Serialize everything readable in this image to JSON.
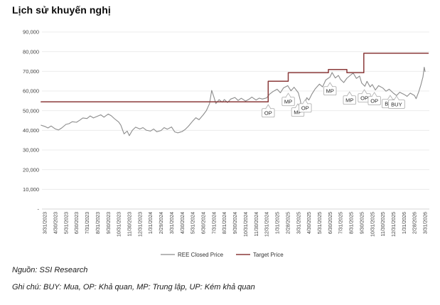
{
  "page": {
    "title": "Lịch sử khuyến nghị",
    "source_note": "Nguồn: SSI Research",
    "glossary_note": "Ghi chú: BUY: Mua, OP: Khả quan, MP: Trung lập, UP: Kém khả quan"
  },
  "chart_data": {
    "type": "line",
    "title": "Lịch sử khuyến nghị",
    "ylim": [
      0,
      90000
    ],
    "grid": true,
    "legend_position": "bottom",
    "colors": {
      "price_line": "#8c8c8c",
      "target_line": "#8b3a3a",
      "gridline": "#ececec",
      "axis": "#d4d4d4",
      "tick_text": "#444444",
      "annotation_border": "#b3b3b3",
      "annotation_text": "#222222"
    },
    "y_ticks": [
      {
        "value": 90000,
        "label": "90,000"
      },
      {
        "value": 80000,
        "label": "80,000"
      },
      {
        "value": 70000,
        "label": "70,000"
      },
      {
        "value": 60000,
        "label": "60,000"
      },
      {
        "value": 50000,
        "label": "50,000"
      },
      {
        "value": 40000,
        "label": "40,000"
      },
      {
        "value": 30000,
        "label": "30,000"
      },
      {
        "value": 20000,
        "label": "20,000"
      },
      {
        "value": 10000,
        "label": "10,000"
      },
      {
        "value": 0,
        "label": "-"
      }
    ],
    "x_tick_labels": [
      "3/31/2023",
      "4/30/2023",
      "5/31/2023",
      "6/30/2023",
      "7/31/2023",
      "8/31/2023",
      "9/30/2023",
      "10/31/2023",
      "11/30/2023",
      "12/31/2023",
      "1/31/2024",
      "2/29/2024",
      "3/31/2024",
      "4/30/2024",
      "5/31/2024",
      "6/30/2024",
      "7/31/2024",
      "8/31/2024",
      "9/30/2024",
      "10/31/2024",
      "11/30/2024",
      "12/31/2024",
      "1/31/2025",
      "2/28/2025",
      "3/31/2025",
      "4/30/2025",
      "5/31/2025",
      "6/30/2025",
      "7/31/2025",
      "8/31/2025",
      "9/30/2025",
      "10/31/2025",
      "11/30/2025",
      "12/31/2025",
      "1/31/2026",
      "2/28/2026",
      "3/31/2026"
    ],
    "series": [
      {
        "name": "REE Closed Price",
        "color": "#8c8c8c",
        "points": [
          [
            -0.35,
            42600
          ],
          [
            0,
            42000
          ],
          [
            0.3,
            41200
          ],
          [
            0.6,
            42200
          ],
          [
            1,
            40700
          ],
          [
            1.3,
            40200
          ],
          [
            1.6,
            41200
          ],
          [
            2,
            43000
          ],
          [
            2.3,
            43400
          ],
          [
            2.6,
            44400
          ],
          [
            3,
            44100
          ],
          [
            3.3,
            45100
          ],
          [
            3.6,
            46300
          ],
          [
            4,
            46000
          ],
          [
            4.3,
            47300
          ],
          [
            4.6,
            46300
          ],
          [
            5,
            47200
          ],
          [
            5.3,
            47900
          ],
          [
            5.6,
            46700
          ],
          [
            6,
            48300
          ],
          [
            6.3,
            47400
          ],
          [
            6.6,
            45900
          ],
          [
            7,
            44200
          ],
          [
            7.2,
            42600
          ],
          [
            7.5,
            38200
          ],
          [
            7.8,
            39600
          ],
          [
            8,
            37300
          ],
          [
            8.3,
            40100
          ],
          [
            8.6,
            41600
          ],
          [
            9,
            40700
          ],
          [
            9.3,
            41400
          ],
          [
            9.6,
            40100
          ],
          [
            10,
            39600
          ],
          [
            10.3,
            40700
          ],
          [
            10.6,
            39300
          ],
          [
            11,
            39900
          ],
          [
            11.3,
            41400
          ],
          [
            11.6,
            40600
          ],
          [
            12,
            41700
          ],
          [
            12.3,
            39200
          ],
          [
            12.6,
            38700
          ],
          [
            13,
            39400
          ],
          [
            13.3,
            40500
          ],
          [
            13.6,
            42100
          ],
          [
            14,
            44700
          ],
          [
            14.3,
            46400
          ],
          [
            14.6,
            45400
          ],
          [
            15,
            47900
          ],
          [
            15.3,
            50100
          ],
          [
            15.6,
            53600
          ],
          [
            15.8,
            60300
          ],
          [
            16,
            57100
          ],
          [
            16.2,
            53600
          ],
          [
            16.5,
            55600
          ],
          [
            16.8,
            54300
          ],
          [
            17,
            55700
          ],
          [
            17.3,
            54100
          ],
          [
            17.6,
            55900
          ],
          [
            18,
            56700
          ],
          [
            18.3,
            55200
          ],
          [
            18.6,
            56300
          ],
          [
            19,
            54900
          ],
          [
            19.3,
            55700
          ],
          [
            19.6,
            56900
          ],
          [
            20,
            55400
          ],
          [
            20.3,
            56400
          ],
          [
            20.6,
            55900
          ],
          [
            21,
            56500
          ],
          [
            21.3,
            58500
          ],
          [
            21.6,
            59700
          ],
          [
            22,
            60900
          ],
          [
            22.3,
            59100
          ],
          [
            22.6,
            61600
          ],
          [
            23,
            62700
          ],
          [
            23.3,
            60100
          ],
          [
            23.6,
            61900
          ],
          [
            24,
            59100
          ],
          [
            24.2,
            55100
          ],
          [
            24.4,
            48300
          ],
          [
            24.6,
            53600
          ],
          [
            24.8,
            56600
          ],
          [
            25,
            55400
          ],
          [
            25.3,
            58600
          ],
          [
            25.6,
            61100
          ],
          [
            26,
            63500
          ],
          [
            26.3,
            62100
          ],
          [
            26.6,
            65600
          ],
          [
            27,
            67100
          ],
          [
            27.2,
            69400
          ],
          [
            27.5,
            66600
          ],
          [
            27.8,
            67900
          ],
          [
            28,
            65900
          ],
          [
            28.3,
            64300
          ],
          [
            28.6,
            66500
          ],
          [
            29,
            68300
          ],
          [
            29.2,
            69100
          ],
          [
            29.5,
            66400
          ],
          [
            29.8,
            67600
          ],
          [
            30,
            64100
          ],
          [
            30.3,
            62400
          ],
          [
            30.5,
            64900
          ],
          [
            30.8,
            62100
          ],
          [
            31,
            63300
          ],
          [
            31.3,
            60500
          ],
          [
            31.6,
            62700
          ],
          [
            32,
            61500
          ],
          [
            32.3,
            59900
          ],
          [
            32.6,
            60900
          ],
          [
            33,
            58900
          ],
          [
            33.3,
            57700
          ],
          [
            33.6,
            59400
          ],
          [
            34,
            58300
          ],
          [
            34.3,
            57300
          ],
          [
            34.6,
            58900
          ],
          [
            35,
            57700
          ],
          [
            35.15,
            56100
          ],
          [
            35.4,
            59600
          ],
          [
            35.6,
            63100
          ],
          [
            35.8,
            67100
          ],
          [
            35.92,
            72100
          ],
          [
            36,
            69900
          ]
        ]
      },
      {
        "name": "Target Price",
        "color": "#8b3a3a",
        "points": [
          [
            -0.35,
            54500
          ],
          [
            21.15,
            54500
          ],
          [
            21.15,
            65000
          ],
          [
            23.05,
            65000
          ],
          [
            23.05,
            69300
          ],
          [
            26.85,
            69300
          ],
          [
            26.85,
            70900
          ],
          [
            28.6,
            70900
          ],
          [
            28.6,
            69300
          ],
          [
            30.2,
            69300
          ],
          [
            30.2,
            79200
          ],
          [
            36.3,
            79200
          ]
        ]
      }
    ],
    "annotations": [
      {
        "label": "OP",
        "x": 21.15,
        "y": 48900
      },
      {
        "label": "MP",
        "x": 23.05,
        "y": 54700
      },
      {
        "label": "MP",
        "x": 23.95,
        "y": 49300
      },
      {
        "label": "OP",
        "x": 24.65,
        "y": 51400
      },
      {
        "label": "MP",
        "x": 27.0,
        "y": 60100
      },
      {
        "label": "MP",
        "x": 28.85,
        "y": 55400
      },
      {
        "label": "OP",
        "x": 30.25,
        "y": 56500
      },
      {
        "label": "OP",
        "x": 31.2,
        "y": 55100
      },
      {
        "label": "BUY",
        "x": 32.7,
        "y": 53600
      },
      {
        "label": "BUY",
        "x": 33.3,
        "y": 53300
      }
    ]
  }
}
